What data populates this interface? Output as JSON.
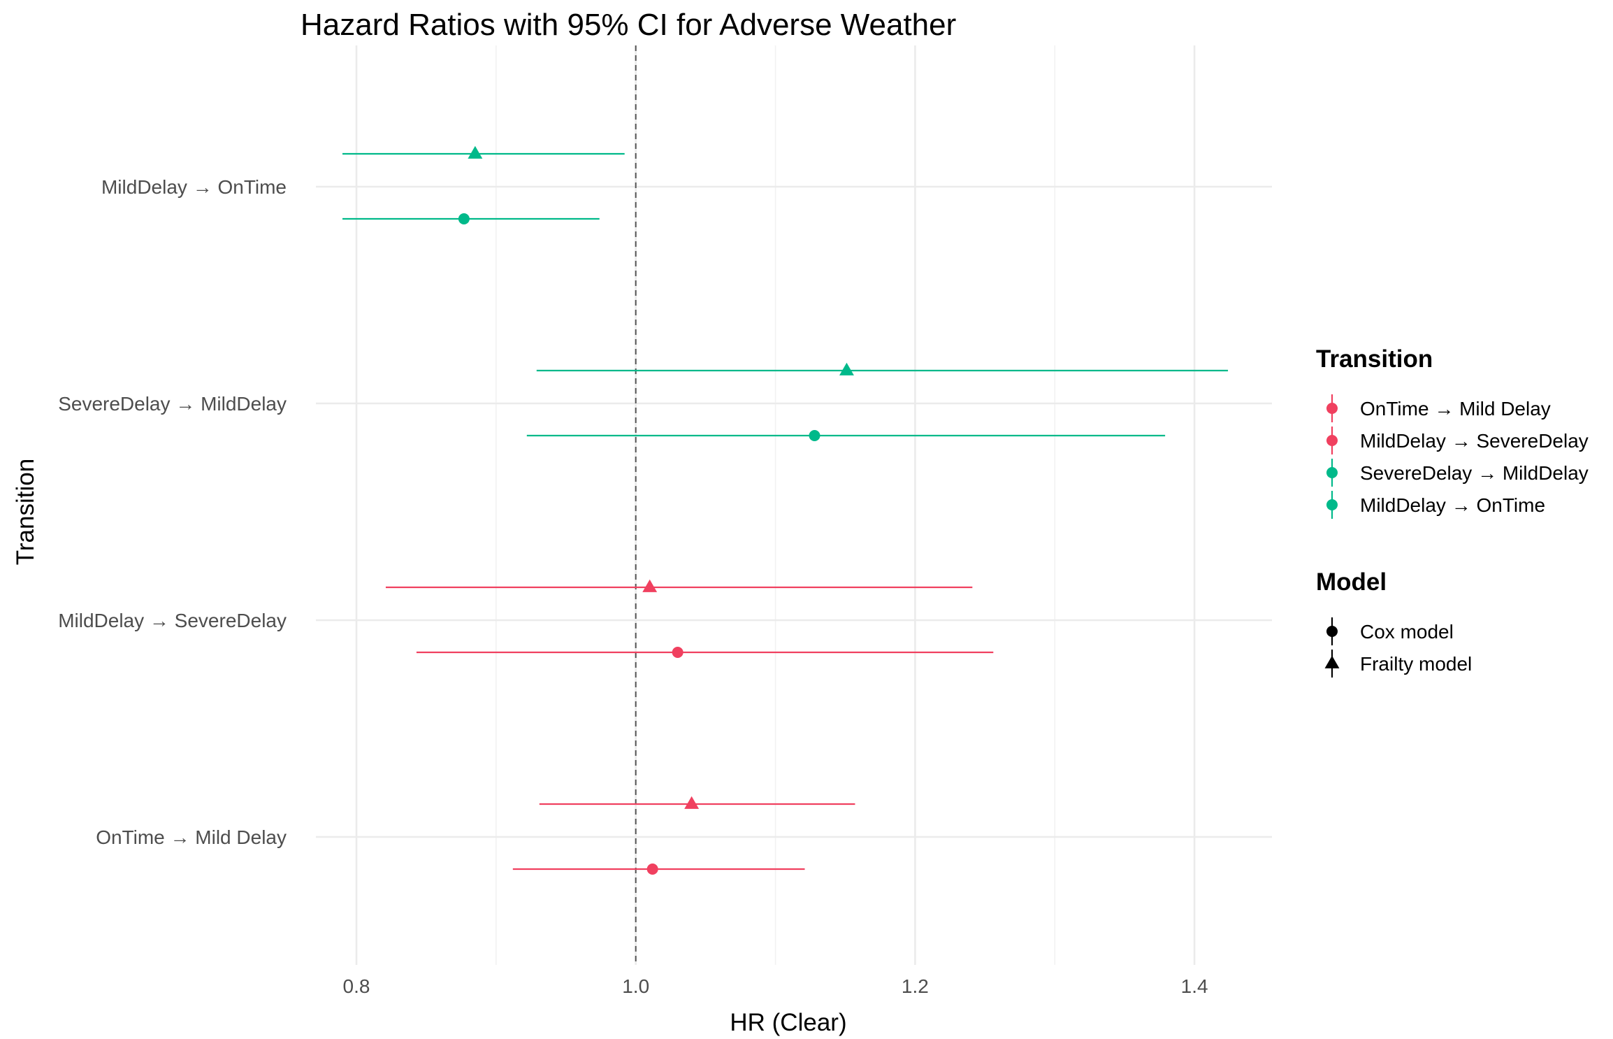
{
  "chart_data": {
    "type": "forest",
    "title": "Hazard Ratios with 95% CI for Adverse Weather",
    "xlabel": "HR (Clear)",
    "ylabel": "Transition",
    "xlim": [
      0.75,
      1.41
    ],
    "x_ticks": [
      "0.8",
      "1.0",
      "1.2",
      "1.4"
    ],
    "x_tick_values": [
      0.8,
      1.0,
      1.2,
      1.4
    ],
    "reference_line": 1.0,
    "categories": [
      "OnTime → Mild Delay",
      "MildDelay → SevereDelay",
      "SevereDelay → MildDelay",
      "MildDelay → OnTime"
    ],
    "colors": {
      "OnTime → Mild Delay": "#f0405f",
      "MildDelay → SevereDelay": "#f0405f",
      "SevereDelay → MildDelay": "#00b98a",
      "MildDelay → OnTime": "#00b98a"
    },
    "series": [
      {
        "name": "Cox model",
        "shape": "circle",
        "points": [
          {
            "transition": "OnTime → Mild Delay",
            "hr": 1.012,
            "lower": 0.912,
            "upper": 1.121
          },
          {
            "transition": "MildDelay → SevereDelay",
            "hr": 1.03,
            "lower": 0.843,
            "upper": 1.256
          },
          {
            "transition": "SevereDelay → MildDelay",
            "hr": 1.128,
            "lower": 0.922,
            "upper": 1.379
          },
          {
            "transition": "MildDelay → OnTime",
            "hr": 0.877,
            "lower": 0.79,
            "upper": 0.974
          }
        ]
      },
      {
        "name": "Frailty model",
        "shape": "triangle",
        "points": [
          {
            "transition": "OnTime → Mild Delay",
            "hr": 1.04,
            "lower": 0.931,
            "upper": 1.157
          },
          {
            "transition": "MildDelay → SevereDelay",
            "hr": 1.01,
            "lower": 0.821,
            "upper": 1.241
          },
          {
            "transition": "SevereDelay → MildDelay",
            "hr": 1.151,
            "lower": 0.929,
            "upper": 1.424
          },
          {
            "transition": "MildDelay → OnTime",
            "hr": 0.885,
            "lower": 0.79,
            "upper": 0.992
          }
        ]
      }
    ],
    "grid": true,
    "legend": {
      "position": "right",
      "transition_title": "Transition",
      "transition_entries": [
        "OnTime → Mild Delay",
        "MildDelay → SevereDelay",
        "SevereDelay → MildDelay",
        "MildDelay → OnTime"
      ],
      "model_title": "Model",
      "model_entries": [
        "Cox model",
        "Frailty model"
      ]
    }
  }
}
